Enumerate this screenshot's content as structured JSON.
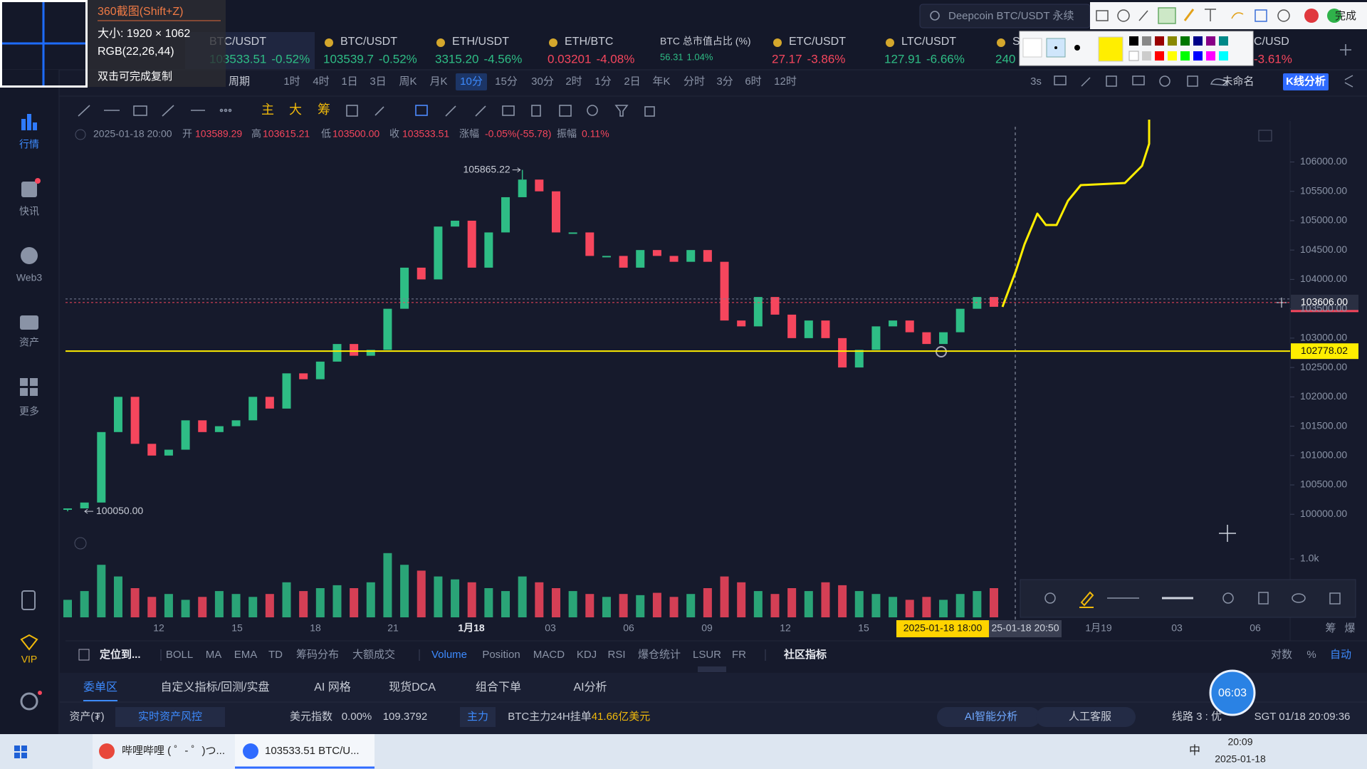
{
  "capture_overlay": {
    "title": "360截图(Shift+Z)",
    "size": "大小: 1920 × 1062",
    "color": "RGB(22,26,44)",
    "hint": "双击可完成复制"
  },
  "search_box": {
    "text": "Deepcoin BTC/USDT 永续"
  },
  "annotation_toolbar": {
    "done": "完成"
  },
  "tickers": [
    {
      "name": "BTC/USDT",
      "price": "103533.51",
      "change": "-0.52%",
      "color": "#2ebd85"
    },
    {
      "name": "BTC/USDT",
      "price": "103539.7",
      "change": "-0.52%",
      "color": "#2ebd85"
    },
    {
      "name": "ETH/USDT",
      "price": "3315.20",
      "change": "-4.56%",
      "color": "#2ebd85"
    },
    {
      "name": "ETH/BTC",
      "price": "0.03201",
      "change": "-4.08%",
      "color": "#f6465d"
    },
    {
      "name": "BTC 总市值占比 (%)",
      "price": "56.31",
      "change": "1.04%",
      "color": "#2ebd85"
    },
    {
      "name": "ETC/USDT",
      "price": "27.17",
      "change": "-3.86%",
      "color": "#f6465d"
    },
    {
      "name": "LTC/USDT",
      "price": "127.91",
      "change": "-6.66%",
      "color": "#2ebd85"
    },
    {
      "name": "S",
      "price": "240",
      "color": "#2ebd85"
    },
    {
      "name": "C/USD",
      "change": "-3.61%",
      "color": "#f6465d"
    }
  ],
  "periods": {
    "label": "周期",
    "items": [
      "1时",
      "4时",
      "1日",
      "3日",
      "周K",
      "月K",
      "10分",
      "15分",
      "30分",
      "2时",
      "1分",
      "2日",
      "年K",
      "分时",
      "3分",
      "6时",
      "12时"
    ],
    "active": 6
  },
  "toolbar_right": {
    "interval": "3s",
    "layout_name": "未命名",
    "analysis": "K线分析"
  },
  "sidebar": {
    "items": [
      "行情",
      "快讯",
      "Web3",
      "资产",
      "更多",
      "VIP"
    ],
    "active": 0
  },
  "drawing_tools": [
    "主",
    "大",
    "筹"
  ],
  "ohlc_info": {
    "time": "2025-01-18 20:00",
    "open_label": "开",
    "open": "103589.29",
    "high_label": "高",
    "high": "103615.21",
    "low_label": "低",
    "low": "103500.00",
    "close_label": "收",
    "close": "103533.51",
    "change_label": "涨幅",
    "change": "-0.05%(-55.78)",
    "amplitude_label": "振幅",
    "amplitude": "0.11%"
  },
  "chart_data": {
    "type": "candlestick",
    "closes": [
      100100,
      100200,
      101400,
      102000,
      101200,
      101000,
      101100,
      101600,
      101400,
      101500,
      101600,
      102000,
      101800,
      102400,
      102300,
      102600,
      102900,
      102700,
      102800,
      103500,
      104200,
      104000,
      104900,
      105000,
      104200,
      104800,
      105400,
      105700,
      105500,
      104800,
      104800,
      104400,
      104400,
      104200,
      104500,
      104400,
      104300,
      104500,
      104300,
      103300,
      103200,
      103700,
      103400,
      103000,
      103300,
      103000,
      102500,
      102800,
      103200,
      103300,
      103100,
      102900,
      103100,
      103500,
      103700,
      103533.51
    ],
    "volumes": [
      300,
      450,
      900,
      700,
      500,
      350,
      400,
      300,
      350,
      450,
      400,
      350,
      400,
      600,
      450,
      500,
      550,
      500,
      600,
      1100,
      900,
      800,
      700,
      650,
      600,
      500,
      450,
      700,
      600,
      500,
      450,
      400,
      350,
      400,
      380,
      420,
      350,
      400,
      500,
      700,
      600,
      450,
      400,
      500,
      450,
      600,
      550,
      450,
      400,
      350,
      300,
      350,
      300,
      400,
      450,
      500
    ],
    "up_color": "#2ebd85",
    "down_color": "#f6465d",
    "ylim": [
      99700,
      106600
    ],
    "yticks": [
      {
        "value": 100000,
        "label": "100000.00"
      },
      {
        "value": 100500,
        "label": "100500.00"
      },
      {
        "value": 101000,
        "label": "101000.00"
      },
      {
        "value": 101500,
        "label": "101500.00"
      },
      {
        "value": 102000,
        "label": "102000.00"
      },
      {
        "value": 102500,
        "label": "102500.00"
      },
      {
        "value": 103000,
        "label": "103000.00"
      },
      {
        "value": 103500,
        "label": "103500.00"
      },
      {
        "value": 104000,
        "label": "104000.00"
      },
      {
        "value": 104500,
        "label": "104500.00"
      },
      {
        "value": 105000,
        "label": "105000.00"
      },
      {
        "value": 105500,
        "label": "105500.00"
      },
      {
        "value": 106000,
        "label": "106000.00"
      }
    ],
    "volume_ylim": [
      0,
      1000
    ],
    "volume_ticks": [
      {
        "value": 1000,
        "label": "1.0k"
      }
    ],
    "high_marker": 105865.22,
    "low_marker": {
      "value": 100050,
      "label": "100050.00"
    },
    "last_price": {
      "value": 103606,
      "label": "103606.00"
    },
    "hline": 102778.02,
    "time_labels": [
      "12",
      "15",
      "18",
      "21",
      "1月18",
      "03",
      "06",
      "09",
      "12",
      "15",
      "2025-01-18 18:00",
      "25-01-18 20:50",
      "1月19",
      "03",
      "06"
    ],
    "side_labels": [
      "筹",
      "爆"
    ]
  },
  "indicator_bar": {
    "locate": "定位到...",
    "main": [
      "BOLL",
      "MA",
      "EMA",
      "TD",
      "筹码分布",
      "大额成交"
    ],
    "sub": [
      "Volume",
      "Position",
      "MACD",
      "KDJ",
      "RSI",
      "爆仓统计",
      "LSUR",
      "FR"
    ],
    "active_sub": 0,
    "community": "社区指标",
    "right": [
      "对数",
      "%",
      "自动"
    ]
  },
  "bottom_tabs": {
    "items": [
      "委单区",
      "自定义指标/回测/实盘",
      "AI 网格",
      "现货DCA",
      "组合下单",
      "AI分析"
    ],
    "active": 0
  },
  "status_bar": {
    "assets": "资产(₮)",
    "risk": "实时资产风控",
    "usd_index_label": "美元指数",
    "usd_index_change": "0.00%",
    "usd_index": "109.3792",
    "main_force": "主力",
    "order_label": "BTC主力24H挂单",
    "order_value": "41.66亿美元",
    "ai": "AI智能分析",
    "support": "人工客服",
    "line": "线路 3 : 优",
    "clock": "SGT 01/18 20:09:36"
  },
  "timer": "06:03",
  "taskbar": {
    "apps": [
      "哔哩哔哩 ( ゜- ゜)つ...",
      "103533.51 BTC/U..."
    ],
    "ime": "中",
    "time": "20:09",
    "date": "2025-01-18"
  }
}
